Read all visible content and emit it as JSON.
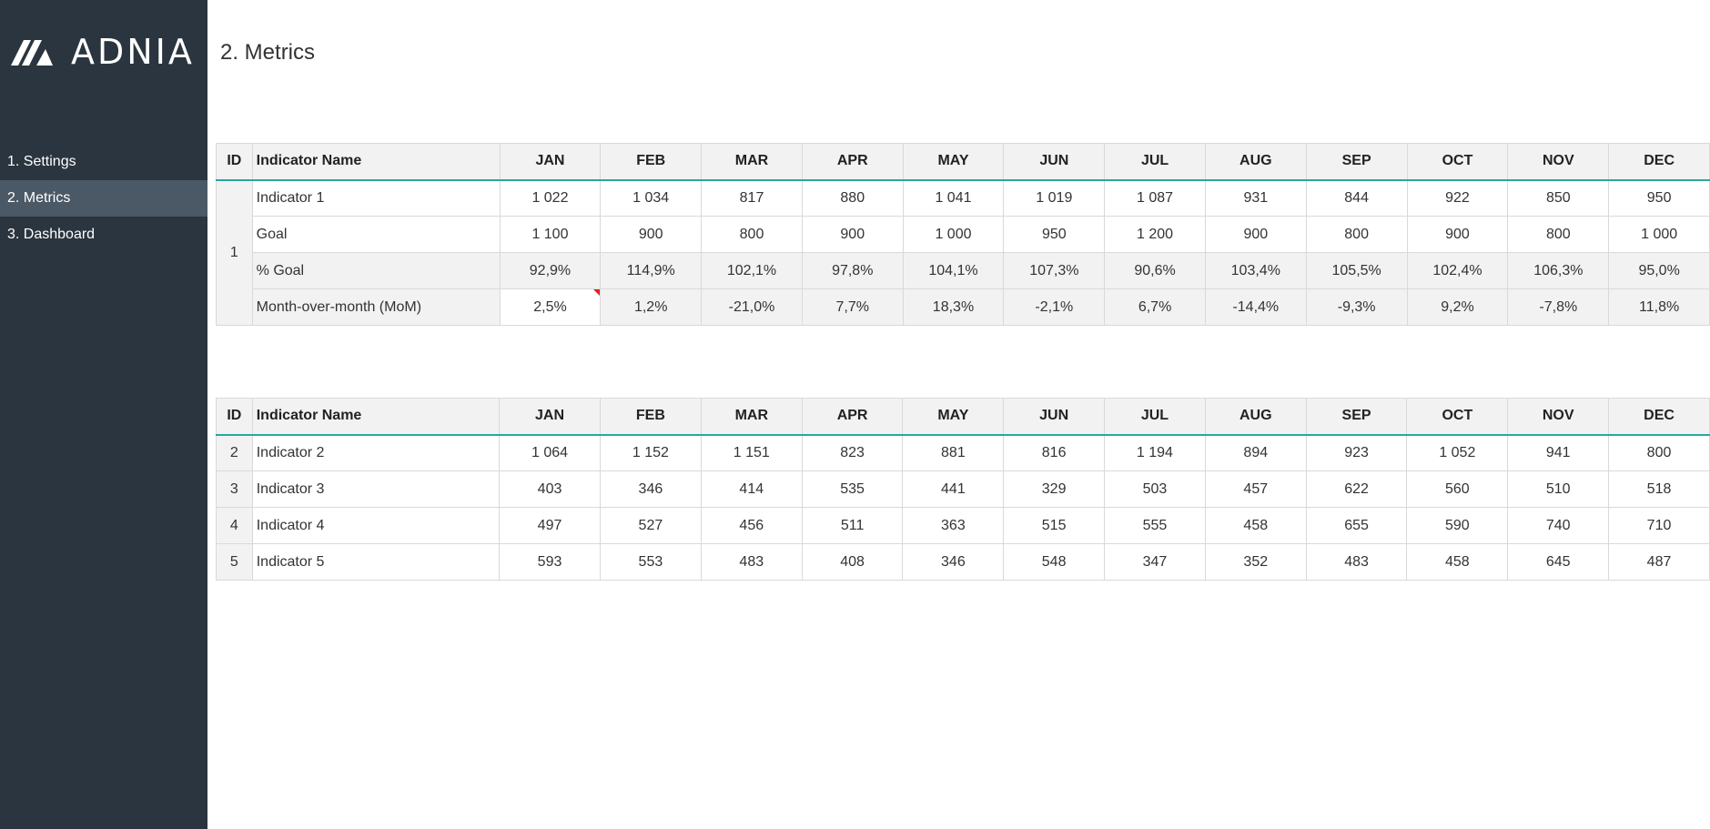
{
  "sidebar": {
    "brand": "ADNIA",
    "items": [
      {
        "label": "1. Settings"
      },
      {
        "label": "2. Metrics"
      },
      {
        "label": "3. Dashboard"
      }
    ]
  },
  "page": {
    "title": "2. Metrics"
  },
  "colors": {
    "sidebar_bg": "#2b353f",
    "active_bg": "#4b5866",
    "accent": "#28a99e",
    "comment_marker": "#e02020"
  },
  "table1": {
    "headers": {
      "id": "ID",
      "name": "Indicator Name",
      "months": [
        "JAN",
        "FEB",
        "MAR",
        "APR",
        "MAY",
        "JUN",
        "JUL",
        "AUG",
        "SEP",
        "OCT",
        "NOV",
        "DEC"
      ]
    },
    "id": "1",
    "rows": [
      {
        "name": "Indicator 1",
        "values": [
          "1 022",
          "1 034",
          "817",
          "880",
          "1 041",
          "1 019",
          "1 087",
          "931",
          "844",
          "922",
          "850",
          "950"
        ]
      },
      {
        "name": "Goal",
        "values": [
          "1 100",
          "900",
          "800",
          "900",
          "1 000",
          "950",
          "1 200",
          "900",
          "800",
          "900",
          "800",
          "1 000"
        ]
      },
      {
        "name": "% Goal",
        "values": [
          "92,9%",
          "114,9%",
          "102,1%",
          "97,8%",
          "104,1%",
          "107,3%",
          "90,6%",
          "103,4%",
          "105,5%",
          "102,4%",
          "106,3%",
          "95,0%"
        ]
      },
      {
        "name": "Month-over-month (MoM)",
        "values": [
          "2,5%",
          "1,2%",
          "-21,0%",
          "7,7%",
          "18,3%",
          "-2,1%",
          "6,7%",
          "-14,4%",
          "-9,3%",
          "9,2%",
          "-7,8%",
          "11,8%"
        ]
      }
    ]
  },
  "table2": {
    "headers": {
      "id": "ID",
      "name": "Indicator Name",
      "months": [
        "JAN",
        "FEB",
        "MAR",
        "APR",
        "MAY",
        "JUN",
        "JUL",
        "AUG",
        "SEP",
        "OCT",
        "NOV",
        "DEC"
      ]
    },
    "rows": [
      {
        "id": "2",
        "name": "Indicator 2",
        "values": [
          "1 064",
          "1 152",
          "1 151",
          "823",
          "881",
          "816",
          "1 194",
          "894",
          "923",
          "1 052",
          "941",
          "800"
        ]
      },
      {
        "id": "3",
        "name": "Indicator 3",
        "values": [
          "403",
          "346",
          "414",
          "535",
          "441",
          "329",
          "503",
          "457",
          "622",
          "560",
          "510",
          "518"
        ]
      },
      {
        "id": "4",
        "name": "Indicator 4",
        "values": [
          "497",
          "527",
          "456",
          "511",
          "363",
          "515",
          "555",
          "458",
          "655",
          "590",
          "740",
          "710"
        ]
      },
      {
        "id": "5",
        "name": "Indicator 5",
        "values": [
          "593",
          "553",
          "483",
          "408",
          "346",
          "548",
          "347",
          "352",
          "483",
          "458",
          "645",
          "487"
        ]
      }
    ]
  }
}
